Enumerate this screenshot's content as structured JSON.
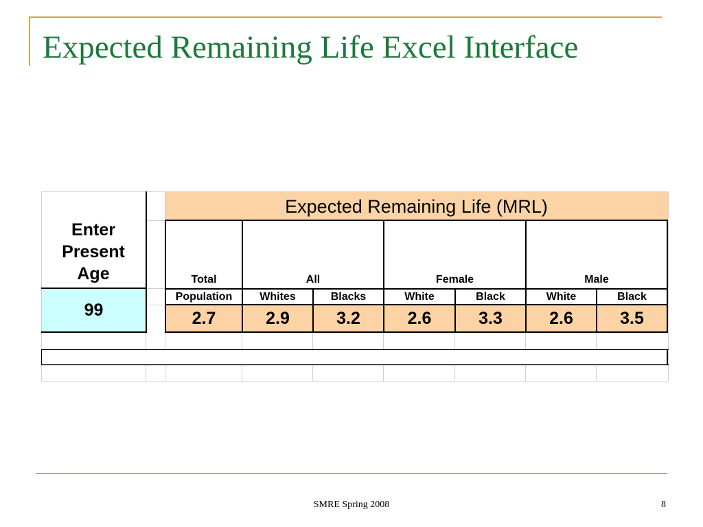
{
  "slide": {
    "title": "Expected Remaining Life Excel Interface",
    "footer": "SMRE Spring 2008",
    "page_number": "8"
  },
  "colors": {
    "title": "#1a7a3c",
    "frame": "#d4a93c",
    "header_fill": "#fcd3a4",
    "input_fill": "#ccffff"
  },
  "sheet": {
    "input_label": "Enter Present Age",
    "input_value": "99",
    "header": "Expected Remaining Life (MRL)",
    "groups": {
      "total": "Total",
      "all": "All",
      "female": "Female",
      "male": "Male"
    },
    "subheaders": [
      "Population",
      "Whites",
      "Blacks",
      "White",
      "Black",
      "White",
      "Black"
    ],
    "values": [
      "2.7",
      "2.9",
      "3.2",
      "2.6",
      "3.3",
      "2.6",
      "3.5"
    ]
  }
}
